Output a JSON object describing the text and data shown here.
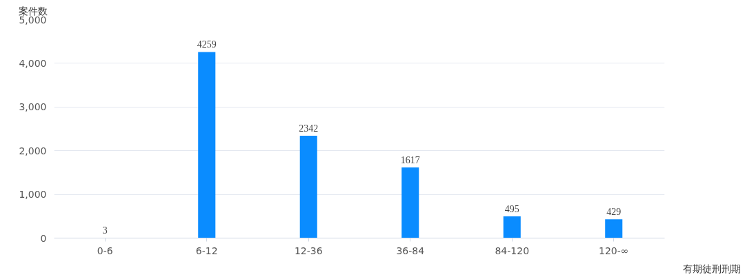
{
  "chart_data": {
    "type": "bar",
    "ylabel": "案件数",
    "xlabel": "有期徒刑刑期",
    "categories": [
      "0-6",
      "6-12",
      "12-36",
      "36-84",
      "84-120",
      "120-∞"
    ],
    "values": [
      3,
      4259,
      2342,
      1617,
      495,
      429
    ],
    "color": "#0a8cff",
    "ylim": [
      0,
      5000
    ],
    "yticks": [
      0,
      {
        "value": 1000,
        "label": "1,000"
      },
      {
        "value": 2000,
        "label": "2,000"
      },
      {
        "value": 3000,
        "label": "3,000"
      },
      {
        "value": 4000,
        "label": "4,000"
      },
      {
        "value": 5000,
        "label": "5,000"
      }
    ],
    "grid": "y",
    "data_labels": true
  }
}
